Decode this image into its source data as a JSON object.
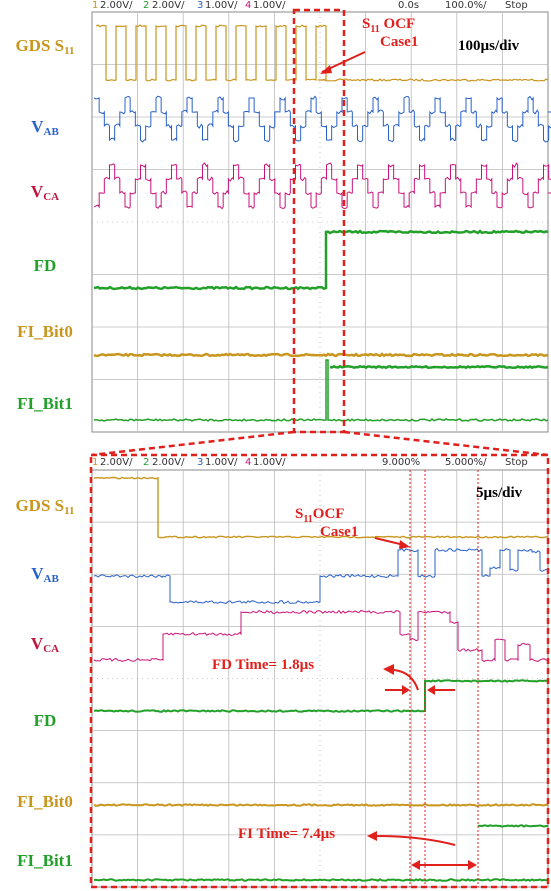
{
  "top": {
    "header": [
      "1",
      "2.00V/",
      "2",
      "2.00V/",
      "3",
      "1.00V/",
      "4",
      "1.00V/",
      "0.0s",
      "100.0%/",
      "Stop"
    ],
    "labels": [
      {
        "text": "GDS S",
        "sub": "11"
      },
      {
        "text": "V",
        "sub": "AB"
      },
      {
        "text": "V",
        "sub": "CA"
      },
      {
        "text": "FD"
      },
      {
        "text": "FI_Bit0"
      },
      {
        "text": "FI_Bit1"
      }
    ],
    "annotation": {
      "text": "S",
      "sub": "11",
      "rest": " OCF",
      "line2": "Case1"
    },
    "timebase": "100µs/div"
  },
  "bottom": {
    "header": [
      "1",
      "2.00V/",
      "2",
      "2.00V/",
      "3",
      "1.00V/",
      "4",
      "1.00V/",
      "9.000%",
      "5.000%/",
      "Stop"
    ],
    "labels": [
      {
        "text": "GDS S",
        "sub": "11"
      },
      {
        "text": "V",
        "sub": "AB"
      },
      {
        "text": "V",
        "sub": "CA"
      },
      {
        "text": "FD"
      },
      {
        "text": "FI_Bit0"
      },
      {
        "text": "FI_Bit1"
      }
    ],
    "annotation": {
      "text": "S",
      "sub": "11",
      "rest": "OCF",
      "line2": "Case1"
    },
    "timebase": "5µs/div",
    "fd_time": "FD Time= 1.8µs",
    "fi_time": "FI Time= 7.4µs"
  }
}
